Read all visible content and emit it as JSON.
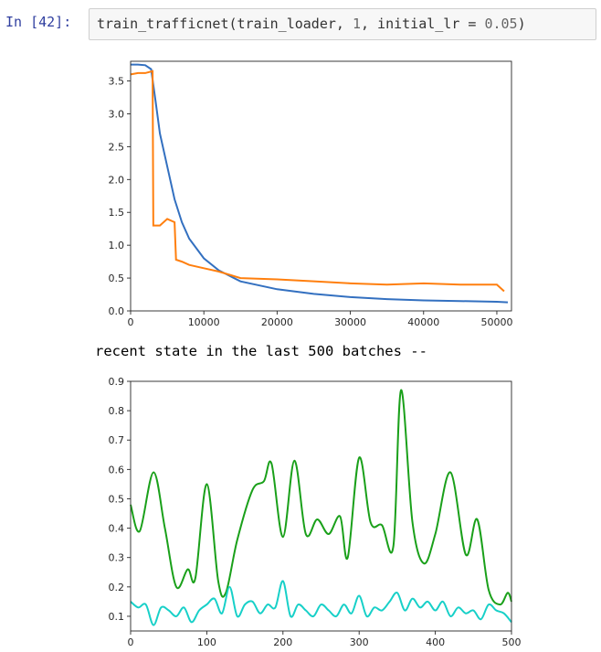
{
  "cell": {
    "prompt": "In [42]:",
    "code_parts": [
      "train_trafficnet(train_loader, ",
      "1",
      ", initial_lr = ",
      "0.05",
      ")"
    ]
  },
  "output_text": "recent state in the last 500 batches --",
  "colors": {
    "blue": "#3370c0",
    "orange": "#ff7f0e",
    "green": "#1aa01a",
    "cyan": "#17d0c8"
  },
  "chart_data": [
    {
      "type": "line",
      "xlim": [
        0,
        52000
      ],
      "ylim": [
        0,
        3.8
      ],
      "xticks": [
        0,
        10000,
        20000,
        30000,
        40000,
        50000
      ],
      "yticks": [
        0.0,
        0.5,
        1.0,
        1.5,
        2.0,
        2.5,
        3.0,
        3.5
      ],
      "series": [
        {
          "color": "#3370c0",
          "x": [
            0,
            1000,
            2000,
            2800,
            3400,
            4000,
            5000,
            6000,
            7000,
            8000,
            10000,
            12000,
            15000,
            20000,
            25000,
            30000,
            35000,
            40000,
            45000,
            50000,
            51500
          ],
          "y": [
            3.75,
            3.75,
            3.74,
            3.68,
            3.2,
            2.7,
            2.2,
            1.7,
            1.35,
            1.1,
            0.8,
            0.62,
            0.45,
            0.33,
            0.26,
            0.21,
            0.18,
            0.16,
            0.15,
            0.14,
            0.13
          ]
        },
        {
          "color": "#ff7f0e",
          "x": [
            0,
            1000,
            2000,
            3000,
            3100,
            4000,
            5000,
            6000,
            6200,
            7000,
            8000,
            10000,
            12000,
            15000,
            20000,
            25000,
            30000,
            35000,
            40000,
            45000,
            50000,
            51000
          ],
          "y": [
            3.6,
            3.62,
            3.62,
            3.65,
            1.3,
            1.3,
            1.4,
            1.35,
            0.78,
            0.75,
            0.7,
            0.65,
            0.6,
            0.5,
            0.48,
            0.45,
            0.42,
            0.4,
            0.42,
            0.4,
            0.4,
            0.3
          ]
        }
      ]
    },
    {
      "type": "line",
      "xlim": [
        0,
        500
      ],
      "ylim": [
        0.05,
        0.9
      ],
      "xticks": [
        0,
        100,
        200,
        300,
        400,
        500
      ],
      "yticks": [
        0.1,
        0.2,
        0.3,
        0.4,
        0.5,
        0.6,
        0.7,
        0.8,
        0.9
      ],
      "series": [
        {
          "color": "#1aa01a",
          "x": [
            0,
            12,
            30,
            45,
            60,
            75,
            85,
            100,
            115,
            125,
            140,
            160,
            175,
            185,
            200,
            215,
            230,
            245,
            260,
            275,
            285,
            300,
            315,
            330,
            345,
            355,
            370,
            385,
            400,
            420,
            440,
            455,
            470,
            485,
            495,
            500
          ],
          "y": [
            0.48,
            0.39,
            0.59,
            0.4,
            0.2,
            0.26,
            0.23,
            0.55,
            0.22,
            0.18,
            0.36,
            0.53,
            0.56,
            0.62,
            0.37,
            0.63,
            0.38,
            0.43,
            0.38,
            0.44,
            0.3,
            0.64,
            0.42,
            0.41,
            0.34,
            0.87,
            0.42,
            0.28,
            0.38,
            0.59,
            0.31,
            0.43,
            0.19,
            0.14,
            0.18,
            0.15
          ]
        },
        {
          "color": "#17d0c8",
          "x": [
            0,
            10,
            20,
            30,
            40,
            50,
            60,
            70,
            80,
            90,
            100,
            110,
            120,
            130,
            140,
            150,
            160,
            170,
            180,
            190,
            200,
            210,
            220,
            230,
            240,
            250,
            260,
            270,
            280,
            290,
            300,
            310,
            320,
            330,
            340,
            350,
            360,
            370,
            380,
            390,
            400,
            410,
            420,
            430,
            440,
            450,
            460,
            470,
            480,
            490,
            500
          ],
          "y": [
            0.15,
            0.13,
            0.14,
            0.07,
            0.13,
            0.12,
            0.1,
            0.13,
            0.08,
            0.12,
            0.14,
            0.16,
            0.11,
            0.2,
            0.1,
            0.14,
            0.15,
            0.11,
            0.14,
            0.13,
            0.22,
            0.1,
            0.14,
            0.12,
            0.1,
            0.14,
            0.12,
            0.1,
            0.14,
            0.11,
            0.17,
            0.1,
            0.13,
            0.12,
            0.15,
            0.18,
            0.12,
            0.16,
            0.13,
            0.15,
            0.12,
            0.15,
            0.1,
            0.13,
            0.11,
            0.12,
            0.09,
            0.14,
            0.12,
            0.11,
            0.08
          ]
        }
      ]
    }
  ]
}
